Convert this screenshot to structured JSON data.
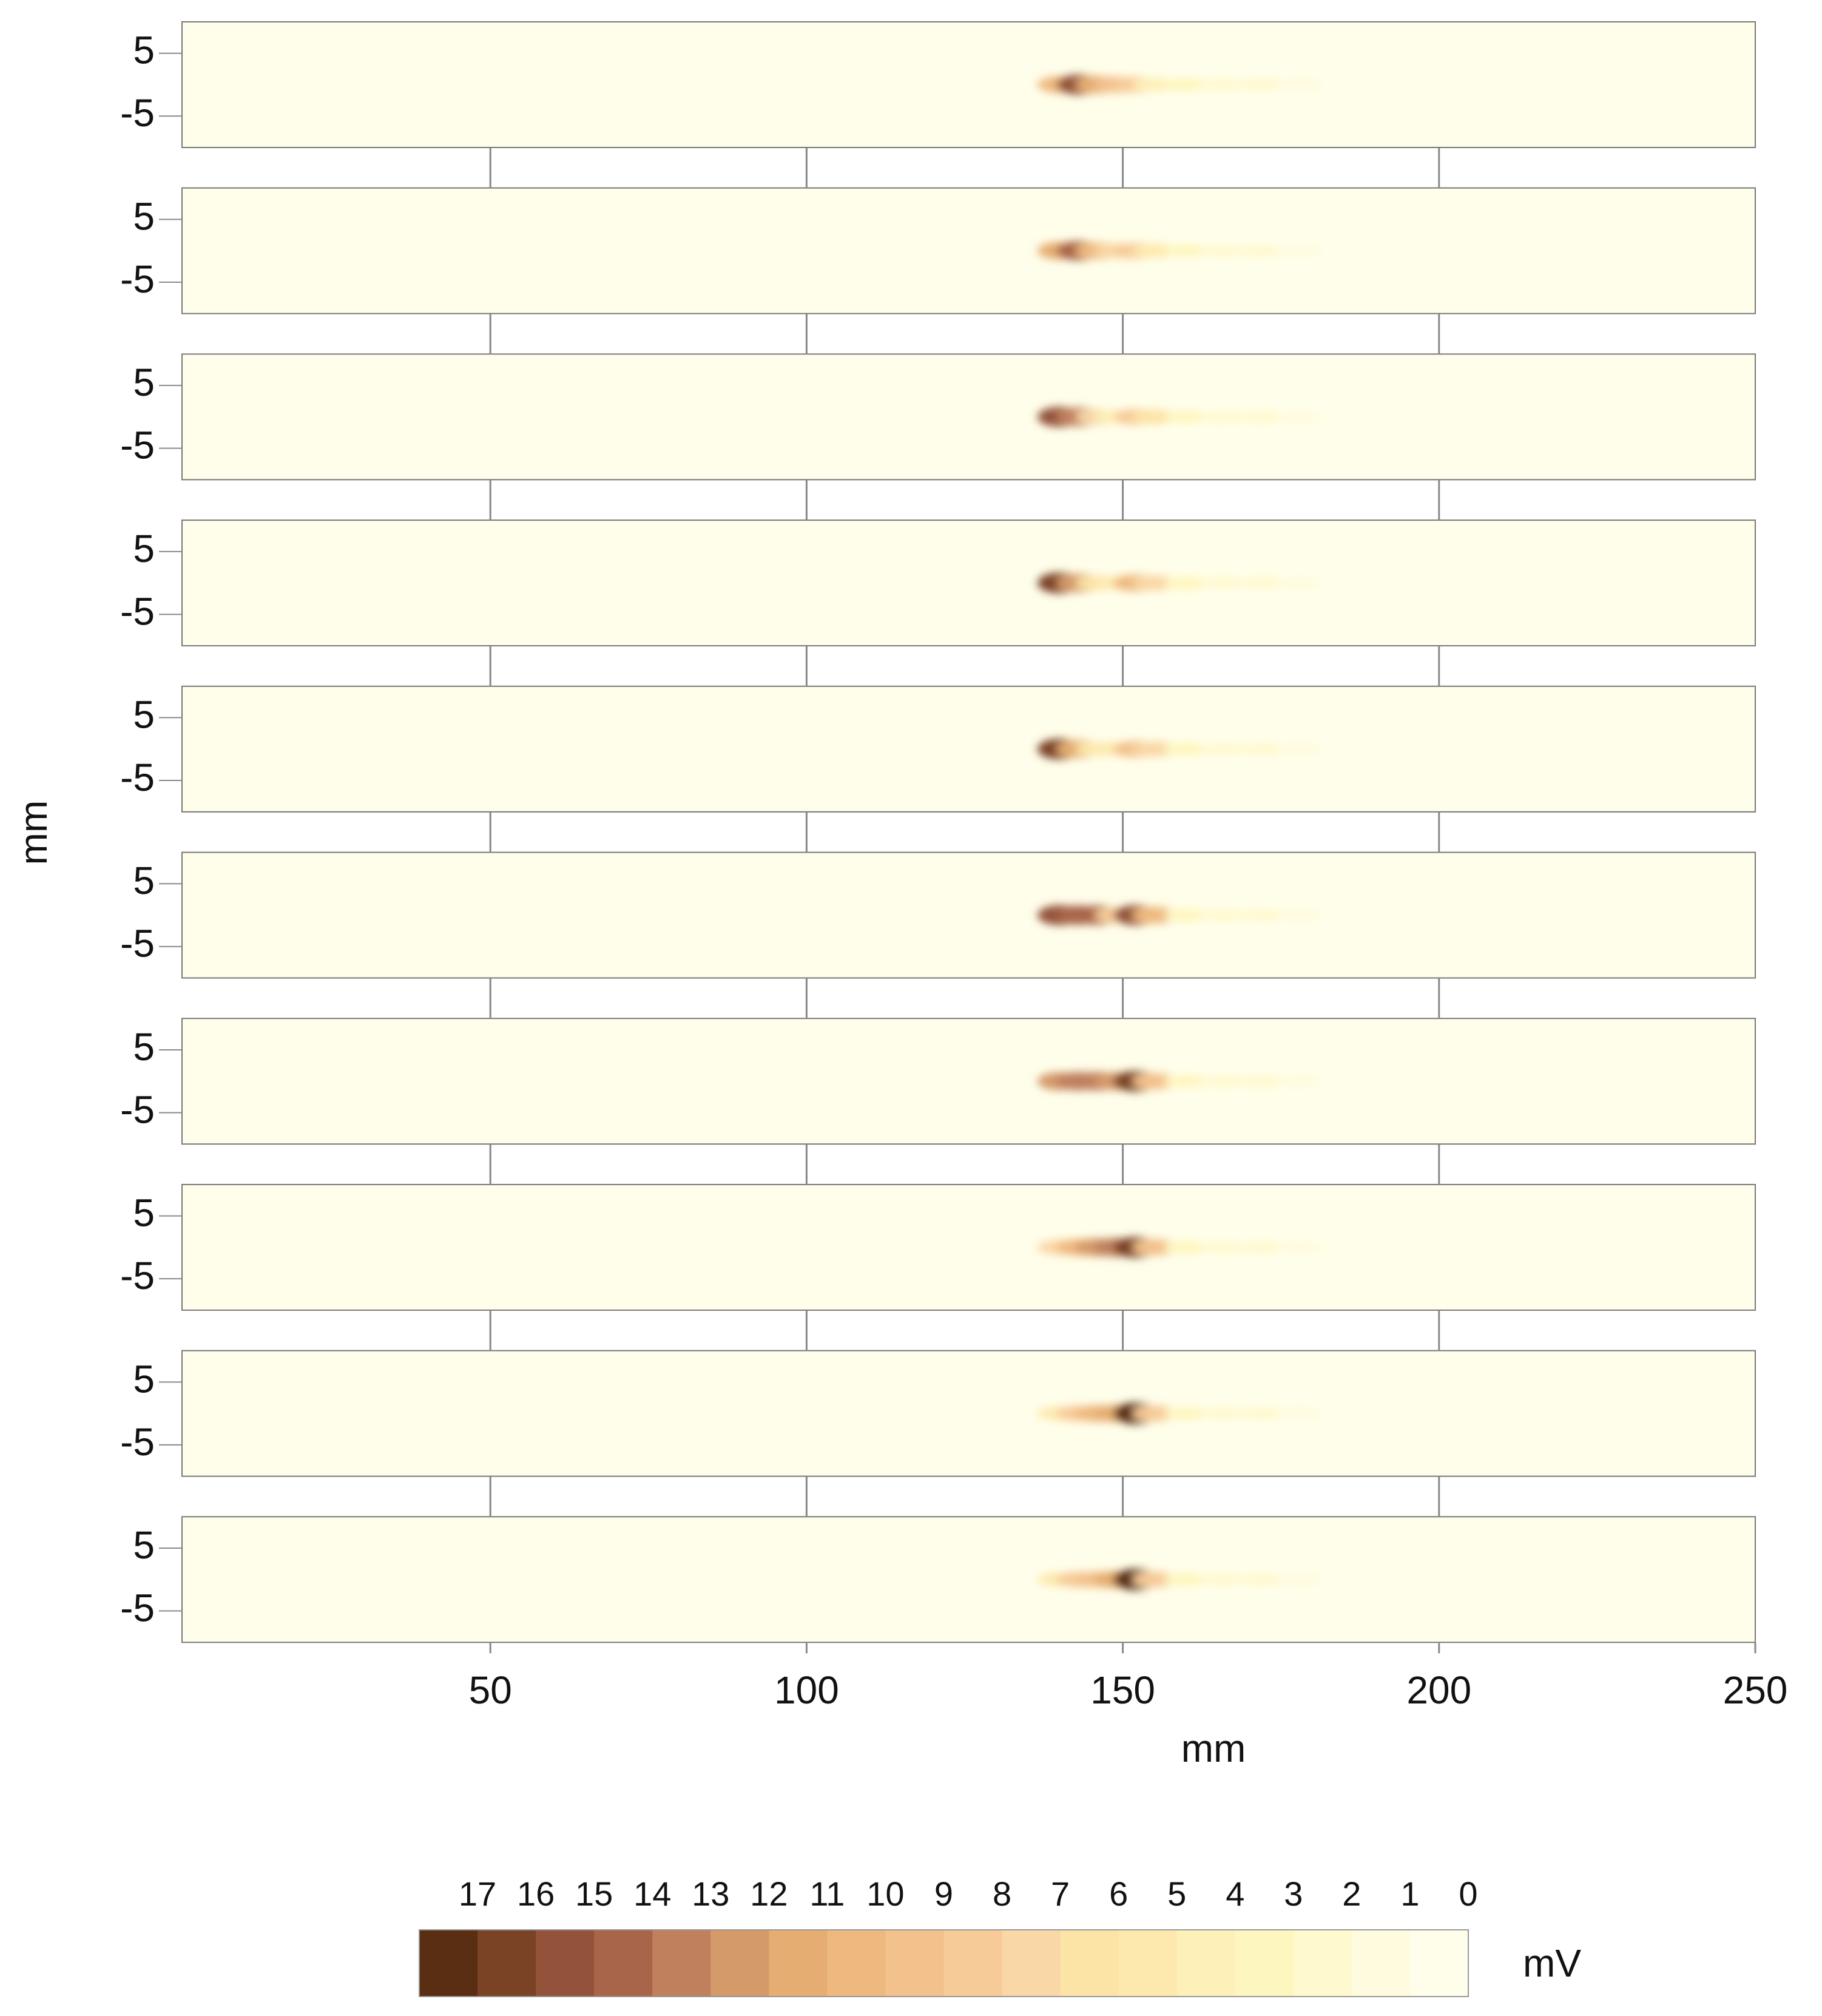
{
  "chart_data": {
    "type": "heatmap",
    "xlabel": "mm",
    "ylabel": "mm",
    "xlim": [
      0,
      250
    ],
    "xticks": [
      50,
      100,
      150,
      200,
      250
    ],
    "ylim": [
      -10,
      10
    ],
    "yticks": [
      5,
      -5
    ],
    "x": [
      140,
      143,
      146,
      149,
      152,
      155,
      160,
      166,
      172,
      178
    ],
    "series": [
      {
        "values": [
          10,
          15,
          11,
          9,
          8,
          4,
          3,
          2,
          2,
          1
        ]
      },
      {
        "values": [
          11,
          14,
          10,
          7,
          8,
          5,
          3,
          2,
          2,
          1
        ]
      },
      {
        "values": [
          15,
          13,
          7,
          4,
          8,
          6,
          3,
          2,
          2,
          1
        ]
      },
      {
        "values": [
          16,
          12,
          6,
          5,
          10,
          7,
          3,
          2,
          2,
          1
        ]
      },
      {
        "values": [
          16,
          11,
          5,
          5,
          9,
          7,
          3,
          2,
          2,
          1
        ]
      },
      {
        "values": [
          15,
          14,
          14,
          8,
          15,
          10,
          3,
          2,
          2,
          1
        ]
      },
      {
        "values": [
          12,
          13,
          13,
          12,
          16,
          9,
          3,
          2,
          2,
          1
        ]
      },
      {
        "values": [
          7,
          10,
          12,
          13,
          16,
          9,
          3,
          2,
          2,
          1
        ]
      },
      {
        "values": [
          5,
          8,
          10,
          11,
          17,
          8,
          3,
          2,
          2,
          1
        ]
      },
      {
        "values": [
          5,
          8,
          9,
          11,
          17,
          8,
          3,
          2,
          2,
          1
        ]
      }
    ],
    "colorbar": {
      "label": "mV",
      "ticks": [
        17,
        16,
        15,
        14,
        13,
        12,
        11,
        10,
        9,
        8,
        7,
        6,
        5,
        4,
        3,
        2,
        1,
        0
      ],
      "colors": [
        "#5a2e12",
        "#7a4325",
        "#92533a",
        "#a8654a",
        "#c0805e",
        "#d49a6a",
        "#e5ad72",
        "#eeb97f",
        "#f3c18c",
        "#f7cb98",
        "#f9d7a6",
        "#fce3a6",
        "#fde9ae",
        "#fdf0b8",
        "#fef6bf",
        "#fff9cf",
        "#fffbdf",
        "#fffeea"
      ]
    }
  }
}
